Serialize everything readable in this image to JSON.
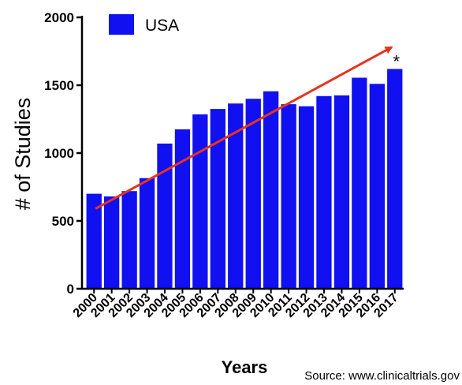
{
  "chart_data": {
    "type": "bar",
    "categories": [
      "2000",
      "2001",
      "2002",
      "2003",
      "2004",
      "2005",
      "2006",
      "2007",
      "2008",
      "2009",
      "2010",
      "2011",
      "2012",
      "2013",
      "2014",
      "2015",
      "2016",
      "2017"
    ],
    "series": [
      {
        "name": "USA",
        "values": [
          700,
          680,
          720,
          815,
          1070,
          1175,
          1285,
          1325,
          1365,
          1400,
          1455,
          1360,
          1345,
          1420,
          1425,
          1555,
          1510,
          1620
        ],
        "color": "#1010f0"
      }
    ],
    "xlabel": "Years",
    "ylabel": "# of Studies",
    "ylim": [
      0,
      2000
    ],
    "yticks": [
      "0",
      "500",
      "1000",
      "1500",
      "2000"
    ],
    "legend": {
      "label": "USA",
      "placement": "top-left"
    },
    "trend_arrow": {
      "from": {
        "x": "2000",
        "y": 590
      },
      "to": {
        "x": "2017",
        "y": 1780
      },
      "color": "#e8321e"
    },
    "annotation": {
      "text": "*",
      "x": "2017"
    },
    "grid": false
  },
  "source_note": "Source: www.clinicaltrials.gov"
}
